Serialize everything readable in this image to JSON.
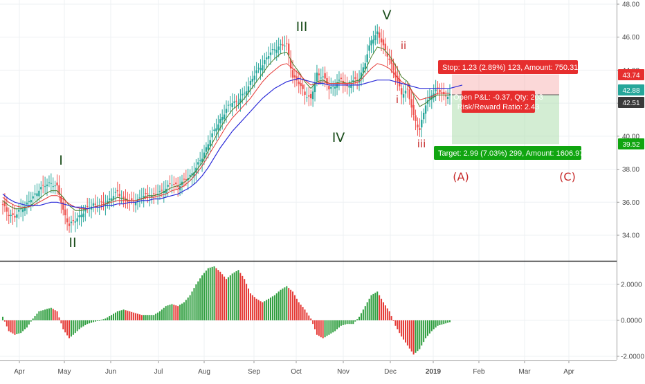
{
  "chart_data": [
    {
      "type": "candlestick",
      "price_axis": {
        "ticks": [
          "48.00",
          "46.00",
          "44.00",
          "42.00",
          "40.00",
          "38.00",
          "36.00",
          "34.00"
        ],
        "ylim": [
          33,
          48.2
        ]
      },
      "x_axis": {
        "ticks": [
          "Apr",
          "May",
          "Jun",
          "Jul",
          "Aug",
          "Sep",
          "Oct",
          "Nov",
          "Dec",
          "2019",
          "Feb",
          "Mar",
          "Apr"
        ]
      },
      "price_series": [
        35.8,
        35.3,
        35.1,
        35.6,
        35.9,
        36.3,
        36.8,
        37.0,
        37.2,
        36.9,
        35.5,
        34.6,
        34.9,
        35.3,
        35.6,
        35.9,
        35.8,
        36.0,
        36.3,
        36.6,
        36.2,
        36.0,
        36.1,
        36.3,
        36.5,
        36.4,
        36.6,
        36.9,
        37.1,
        37.0,
        37.3,
        37.6,
        38.1,
        38.7,
        39.6,
        40.3,
        41.0,
        41.6,
        42.1,
        42.1,
        42.6,
        43.3,
        43.9,
        44.4,
        44.9,
        45.3,
        45.5,
        45.5,
        43.6,
        43.2,
        42.6,
        42.2,
        43.8,
        43.6,
        42.9,
        43.1,
        43.4,
        43.0,
        43.3,
        43.5,
        44.5,
        45.8,
        46.3,
        45.4,
        44.7,
        43.6,
        42.6,
        42.8,
        41.2,
        40.4,
        41.9,
        42.6,
        42.8,
        42.5,
        42.5
      ],
      "ma_blue": [
        36.5,
        36.2,
        36.0,
        35.9,
        35.8,
        35.8,
        35.8,
        35.9,
        36.0,
        36.0,
        35.9,
        35.8,
        35.7,
        35.7,
        35.6,
        35.7,
        35.7,
        35.8,
        35.8,
        35.9,
        35.9,
        36.0,
        36.0,
        36.1,
        36.1,
        36.2,
        36.2,
        36.3,
        36.4,
        36.5,
        36.7,
        36.9,
        37.2,
        37.6,
        38.1,
        38.7,
        39.3,
        39.8,
        40.3,
        40.7,
        41.1,
        41.5,
        41.9,
        42.3,
        42.6,
        42.9,
        43.1,
        43.3,
        43.4,
        43.5,
        43.4,
        43.3,
        43.2,
        43.2,
        43.1,
        43.1,
        43.1,
        43.1,
        43.1,
        43.1,
        43.2,
        43.3,
        43.4,
        43.4,
        43.4,
        43.3,
        43.2,
        43.1,
        43.0,
        42.9,
        42.9,
        42.9,
        42.9,
        42.9,
        42.9
      ],
      "ma_red": [
        36.3,
        36.0,
        35.8,
        35.7,
        35.7,
        35.8,
        36.0,
        36.2,
        36.4,
        36.4,
        36.2,
        35.9,
        35.7,
        35.6,
        35.6,
        35.7,
        35.8,
        35.9,
        36.0,
        36.1,
        36.1,
        36.1,
        36.1,
        36.2,
        36.3,
        36.3,
        36.4,
        36.5,
        36.7,
        36.8,
        37.0,
        37.3,
        37.7,
        38.2,
        38.8,
        39.4,
        40.0,
        40.6,
        41.1,
        41.5,
        41.9,
        42.3,
        42.8,
        43.3,
        43.7,
        44.0,
        44.3,
        44.4,
        44.1,
        43.8,
        43.4,
        43.1,
        43.2,
        43.3,
        43.2,
        43.2,
        43.2,
        43.2,
        43.2,
        43.3,
        43.7,
        44.1,
        44.4,
        44.3,
        44.1,
        43.7,
        43.3,
        43.1,
        42.6,
        42.2,
        42.3,
        42.4,
        42.6,
        42.6,
        42.6
      ],
      "ma_green": [
        36.1,
        35.8,
        35.6,
        35.6,
        35.7,
        35.9,
        36.2,
        36.5,
        36.7,
        36.7,
        36.3,
        35.8,
        35.5,
        35.5,
        35.6,
        35.7,
        35.8,
        35.9,
        36.1,
        36.3,
        36.2,
        36.1,
        36.1,
        36.2,
        36.4,
        36.4,
        36.5,
        36.7,
        36.9,
        37.0,
        37.2,
        37.5,
        37.9,
        38.4,
        39.1,
        39.8,
        40.5,
        41.1,
        41.6,
        41.9,
        42.3,
        42.8,
        43.3,
        43.8,
        44.3,
        44.7,
        45.0,
        45.1,
        44.4,
        43.9,
        43.3,
        42.9,
        43.3,
        43.4,
        43.2,
        43.2,
        43.3,
        43.2,
        43.3,
        43.4,
        44.0,
        44.8,
        45.4,
        45.3,
        44.9,
        44.3,
        43.6,
        43.3,
        42.5,
        41.8,
        42.0,
        42.3,
        42.5,
        42.5,
        42.5
      ],
      "price_badges": [
        "43.74",
        "42.88",
        "42.51",
        "39.52"
      ],
      "position": {
        "stop_label": "Stop: 1.23 (2.89%) 123, Amount: 750.31",
        "pnl_label": "Open P&L: -0.37, Qty: 203",
        "rr_label": "Risk/Reward Ratio: 2.43",
        "target_label": "Target: 2.99 (7.03%) 299, Amount: 1606.97",
        "stop_price": 43.74,
        "entry_price": 42.51,
        "target_price": 39.52
      },
      "wave_labels": [
        "I",
        "II",
        "III",
        "IV",
        "V",
        "i",
        "ii",
        "iii",
        "(A)",
        "(C)"
      ],
      "colors": {
        "up": "#26a69a",
        "down": "#ef5350",
        "ma_blue": "#2a2ad8",
        "ma_red": "#e53935",
        "ma_green": "#4a7d2a",
        "stop": "#e62e2e",
        "target": "#10a510"
      }
    },
    {
      "type": "bar",
      "y_axis": {
        "ticks": [
          "2.0000",
          "0.0000",
          "-2.0000"
        ],
        "ylim": [
          -2.1,
          3.2
        ]
      },
      "values": [
        0.2,
        -0.6,
        -0.8,
        -0.7,
        -0.4,
        0.1,
        0.5,
        0.6,
        0.7,
        0.5,
        -0.5,
        -1.0,
        -0.7,
        -0.4,
        -0.2,
        -0.1,
        0.0,
        0.1,
        0.3,
        0.5,
        0.6,
        0.5,
        0.4,
        0.3,
        0.3,
        0.3,
        0.5,
        0.8,
        0.9,
        0.8,
        1.0,
        1.4,
        2.0,
        2.5,
        2.9,
        3.0,
        2.7,
        2.3,
        2.6,
        2.8,
        2.3,
        1.5,
        1.2,
        1.0,
        1.2,
        1.4,
        1.7,
        1.9,
        1.6,
        1.0,
        0.6,
        0.1,
        -0.8,
        -1.0,
        -0.8,
        -0.6,
        -0.3,
        -0.2,
        -0.2,
        0.2,
        0.8,
        1.4,
        1.6,
        1.0,
        0.5,
        -0.3,
        -0.9,
        -1.4,
        -1.9,
        -1.6,
        -1.0,
        -0.6,
        -0.3,
        -0.2,
        -0.1
      ]
    }
  ]
}
